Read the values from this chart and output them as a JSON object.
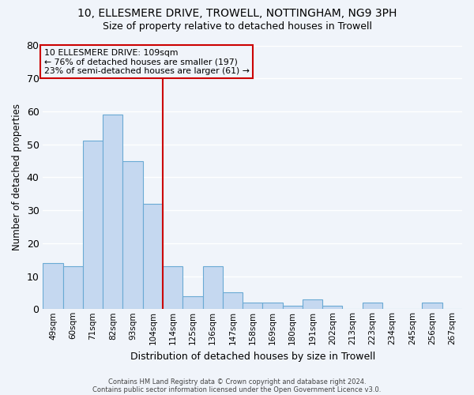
{
  "title": "10, ELLESMERE DRIVE, TROWELL, NOTTINGHAM, NG9 3PH",
  "subtitle": "Size of property relative to detached houses in Trowell",
  "xlabel": "Distribution of detached houses by size in Trowell",
  "ylabel": "Number of detached properties",
  "bar_labels": [
    "49sqm",
    "60sqm",
    "71sqm",
    "82sqm",
    "93sqm",
    "104sqm",
    "114sqm",
    "125sqm",
    "136sqm",
    "147sqm",
    "158sqm",
    "169sqm",
    "180sqm",
    "191sqm",
    "202sqm",
    "213sqm",
    "223sqm",
    "234sqm",
    "245sqm",
    "256sqm",
    "267sqm"
  ],
  "bar_values": [
    14,
    13,
    51,
    59,
    45,
    32,
    13,
    4,
    13,
    5,
    2,
    2,
    1,
    3,
    1,
    0,
    2,
    0,
    0,
    2,
    0
  ],
  "bar_color": "#c5d8f0",
  "bar_edge_color": "#6aaad4",
  "ylim": [
    0,
    80
  ],
  "yticks": [
    0,
    10,
    20,
    30,
    40,
    50,
    60,
    70,
    80
  ],
  "vline_x_index": 6.0,
  "vline_color": "#cc0000",
  "annotation_title": "10 ELLESMERE DRIVE: 109sqm",
  "annotation_line1": "← 76% of detached houses are smaller (197)",
  "annotation_line2": "23% of semi-detached houses are larger (61) →",
  "annotation_box_edgecolor": "#cc0000",
  "bg_color": "#f0f4fa",
  "plot_bg_color": "#f0f4fa",
  "footer1": "Contains HM Land Registry data © Crown copyright and database right 2024.",
  "footer2": "Contains public sector information licensed under the Open Government Licence v3.0.",
  "title_fontsize": 10,
  "subtitle_fontsize": 9,
  "grid_color": "#ffffff"
}
